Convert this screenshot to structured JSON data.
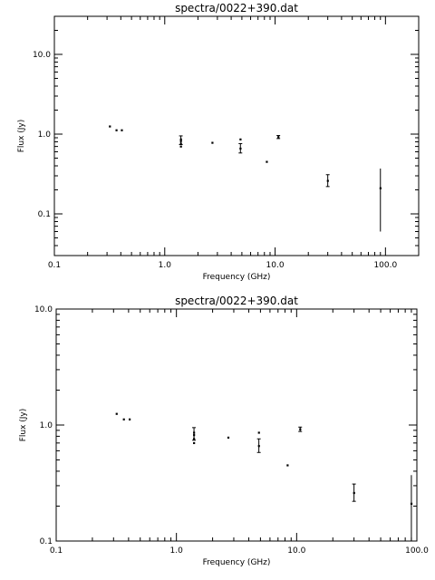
{
  "chart_data": [
    {
      "type": "scatter",
      "title": "spectra/0022+390.dat",
      "xlabel": "Frequency (GHz)",
      "ylabel": "Flux (Jy)",
      "xscale": "log",
      "yscale": "log",
      "xlim": [
        0.1,
        200
      ],
      "ylim": [
        0.03,
        30
      ],
      "xticks": [
        0.1,
        1.0,
        10.0,
        100.0
      ],
      "xtick_labels": [
        "0.1",
        "1.0",
        "10.0",
        "100.0"
      ],
      "yticks": [
        0.1,
        1.0,
        10.0
      ],
      "ytick_labels": [
        "0.1",
        "1.0",
        "10.0"
      ],
      "grid": false,
      "points": [
        {
          "x": 0.318,
          "y": 1.25
        },
        {
          "x": 0.365,
          "y": 1.12
        },
        {
          "x": 0.408,
          "y": 1.12
        },
        {
          "x": 1.4,
          "y": 0.7
        },
        {
          "x": 1.4,
          "y": 0.76
        },
        {
          "x": 1.4,
          "y": 0.82
        },
        {
          "x": 1.4,
          "y": 0.86,
          "ylo": 0.74,
          "yhi": 0.95
        },
        {
          "x": 2.7,
          "y": 0.78
        },
        {
          "x": 4.85,
          "y": 0.86
        },
        {
          "x": 4.85,
          "y": 0.66,
          "ylo": 0.58,
          "yhi": 0.76
        },
        {
          "x": 8.4,
          "y": 0.45
        },
        {
          "x": 10.7,
          "y": 0.92,
          "ylo": 0.88,
          "yhi": 0.96
        },
        {
          "x": 30.0,
          "y": 0.26,
          "ylo": 0.22,
          "yhi": 0.31
        },
        {
          "x": 90.0,
          "y": 0.21,
          "ylo": 0.06,
          "yhi": 0.37
        }
      ]
    },
    {
      "type": "scatter",
      "title": "spectra/0022+390.dat",
      "xlabel": "Frequency (GHz)",
      "ylabel": "Flux (Jy)",
      "xscale": "log",
      "yscale": "log",
      "xlim": [
        0.1,
        100
      ],
      "ylim": [
        0.1,
        10
      ],
      "xticks": [
        0.1,
        1.0,
        10.0,
        100.0
      ],
      "xtick_labels": [
        "0.1",
        "1.0",
        "10.0",
        "100.0"
      ],
      "yticks": [
        0.1,
        1.0,
        10.0
      ],
      "ytick_labels": [
        "0.1",
        "1.0",
        "10.0"
      ],
      "grid": false,
      "points": [
        {
          "x": 0.318,
          "y": 1.25
        },
        {
          "x": 0.365,
          "y": 1.12
        },
        {
          "x": 0.408,
          "y": 1.12
        },
        {
          "x": 1.4,
          "y": 0.7
        },
        {
          "x": 1.4,
          "y": 0.76
        },
        {
          "x": 1.4,
          "y": 0.82
        },
        {
          "x": 1.4,
          "y": 0.86,
          "ylo": 0.74,
          "yhi": 0.95
        },
        {
          "x": 2.7,
          "y": 0.78
        },
        {
          "x": 4.85,
          "y": 0.86
        },
        {
          "x": 4.85,
          "y": 0.66,
          "ylo": 0.58,
          "yhi": 0.76
        },
        {
          "x": 8.4,
          "y": 0.45
        },
        {
          "x": 10.7,
          "y": 0.92,
          "ylo": 0.88,
          "yhi": 0.96
        },
        {
          "x": 30.0,
          "y": 0.26,
          "ylo": 0.22,
          "yhi": 0.31
        },
        {
          "x": 90.0,
          "y": 0.21,
          "ylo": 0.06,
          "yhi": 0.37
        }
      ]
    }
  ]
}
